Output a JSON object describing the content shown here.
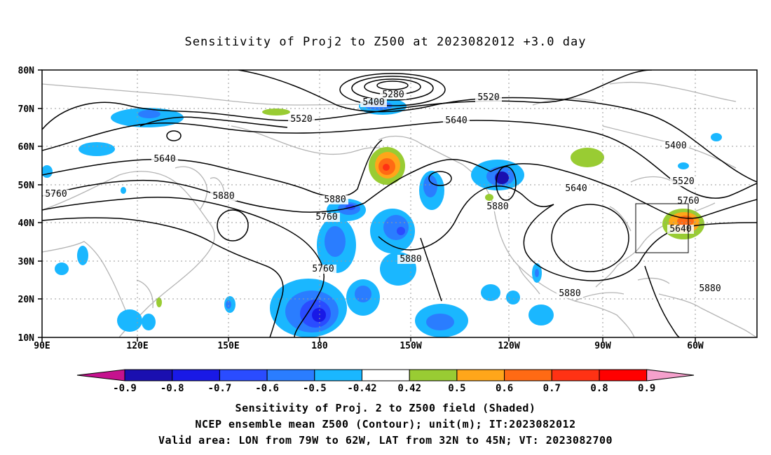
{
  "title": "Sensitivity of Proj2 to Z500 at 2023082012 +3.0 day",
  "lat_labels": [
    "80N",
    "70N",
    "60N",
    "50N",
    "40N",
    "30N",
    "20N",
    "10N"
  ],
  "lon_labels": [
    "90E",
    "120E",
    "150E",
    "180",
    "150W",
    "120W",
    "90W",
    "60W"
  ],
  "contour_labels": [
    "5280",
    "5400",
    "5520",
    "5520",
    "5640",
    "5400",
    "5640",
    "5520",
    "5760",
    "5880",
    "5880",
    "5640",
    "5760",
    "5880",
    "5760",
    "5640",
    "5760",
    "5880",
    "5880",
    "5880"
  ],
  "colorbar": {
    "colors": [
      "#c5128e",
      "#1a0fb0",
      "#1919e6",
      "#2a4cff",
      "#2a7dff",
      "#1ab7ff",
      "#ffffff",
      "#99cc33",
      "#ffa61a",
      "#ff6a14",
      "#ff3214",
      "#ff0000",
      "#f5a0cc"
    ],
    "labels": [
      "-0.9",
      "-0.8",
      "-0.7",
      "-0.6",
      "-0.5",
      "-0.42",
      "0.42",
      "0.5",
      "0.6",
      "0.7",
      "0.8",
      "0.9"
    ]
  },
  "caption": {
    "line1": "Sensitivity of Proj. 2 to Z500 field (Shaded)",
    "line2": "NCEP ensemble mean Z500 (Contour); unit(m); IT:2023082012",
    "line3": "Valid area: LON from 79W to 62W, LAT from 32N to 45N; VT: 2023082700"
  }
}
